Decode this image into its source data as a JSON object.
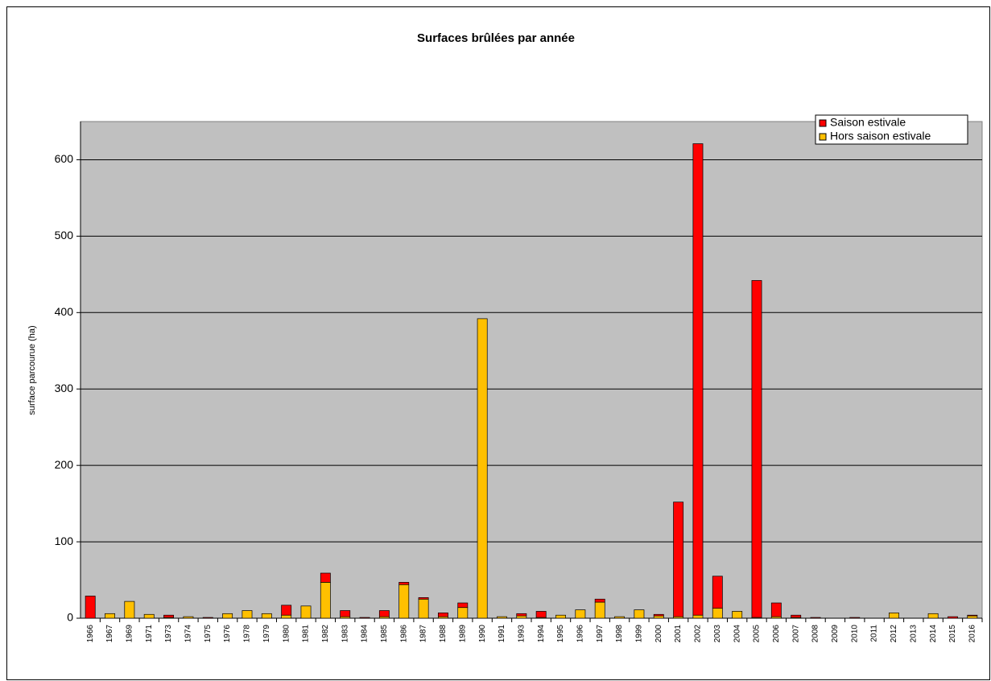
{
  "chart_data": {
    "type": "stacked_bar",
    "title": "Surfaces brûlées par année",
    "y_label": "surface parcourue (ha)",
    "categories": [
      "1966",
      "1967",
      "1969",
      "1971",
      "1973",
      "1974",
      "1975",
      "1976",
      "1978",
      "1979",
      "1980",
      "1981",
      "1982",
      "1983",
      "1984",
      "1985",
      "1986",
      "1987",
      "1988",
      "1989",
      "1990",
      "1991",
      "1993",
      "1994",
      "1995",
      "1996",
      "1997",
      "1998",
      "1999",
      "2000",
      "2001",
      "2002",
      "2003",
      "2004",
      "2005",
      "2006",
      "2007",
      "2008",
      "2009",
      "2010",
      "2011",
      "2012",
      "2013",
      "2014",
      "2015",
      "2016"
    ],
    "series": [
      {
        "name": "Saison estivale",
        "color": "#ff0000",
        "values": [
          29,
          0,
          0,
          0,
          3,
          0,
          1,
          0,
          0,
          0,
          13,
          0,
          12,
          8,
          1,
          8,
          3,
          2,
          5,
          6,
          0,
          0,
          3,
          8,
          0,
          0,
          4,
          0,
          0,
          2,
          150,
          617,
          42,
          0,
          441,
          18,
          3,
          1,
          0,
          1,
          0,
          0,
          0,
          0,
          2,
          1
        ]
      },
      {
        "name": "Hors saison estivale",
        "color": "#ffc000",
        "values": [
          0,
          6,
          22,
          5,
          1,
          2,
          0,
          6,
          10,
          6,
          4,
          16,
          47,
          2,
          0,
          2,
          44,
          25,
          2,
          14,
          392,
          2,
          3,
          1,
          4,
          11,
          21,
          2,
          11,
          3,
          2,
          4,
          13,
          9,
          1,
          2,
          1,
          0,
          0,
          0,
          0,
          7,
          0,
          6,
          0,
          3
        ]
      }
    ],
    "ylim": [
      0,
      650
    ],
    "yticks": [
      0,
      100,
      200,
      300,
      400,
      500,
      600
    ],
    "grid": true,
    "legend": "top-right",
    "background": "#c0c0c0"
  }
}
